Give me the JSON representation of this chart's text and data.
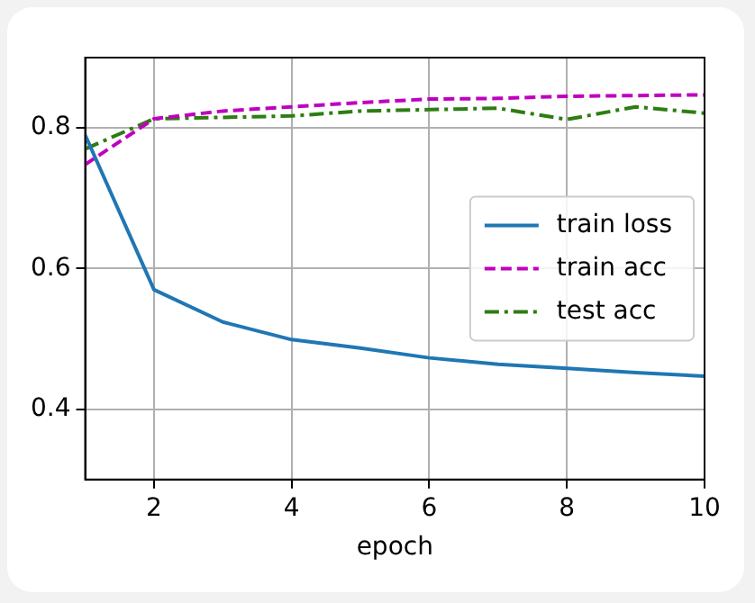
{
  "chart_data": {
    "type": "line",
    "xlabel": "epoch",
    "x": [
      1,
      2,
      3,
      4,
      5,
      6,
      7,
      8,
      9,
      10
    ],
    "series": [
      {
        "name": "train loss",
        "color": "#1f77b4",
        "line_style": "solid",
        "values": [
          0.79,
          0.57,
          0.524,
          0.499,
          0.487,
          0.473,
          0.464,
          0.458,
          0.452,
          0.447
        ]
      },
      {
        "name": "train acc",
        "color": "#bf00bf",
        "line_style": "dashed",
        "values": [
          0.748,
          0.813,
          0.824,
          0.83,
          0.836,
          0.841,
          0.842,
          0.845,
          0.846,
          0.847
        ]
      },
      {
        "name": "test acc",
        "color": "#2e7d12",
        "line_style": "dashdot",
        "values": [
          0.77,
          0.813,
          0.815,
          0.817,
          0.824,
          0.826,
          0.828,
          0.812,
          0.83,
          0.821
        ]
      }
    ],
    "xlim": [
      1,
      10
    ],
    "xticks": [
      2,
      4,
      6,
      8,
      10
    ],
    "ylim": [
      0.3,
      0.9
    ],
    "yticks": [
      0.4,
      0.6,
      0.8
    ],
    "grid": true,
    "legend": "center right",
    "marker": "none"
  }
}
